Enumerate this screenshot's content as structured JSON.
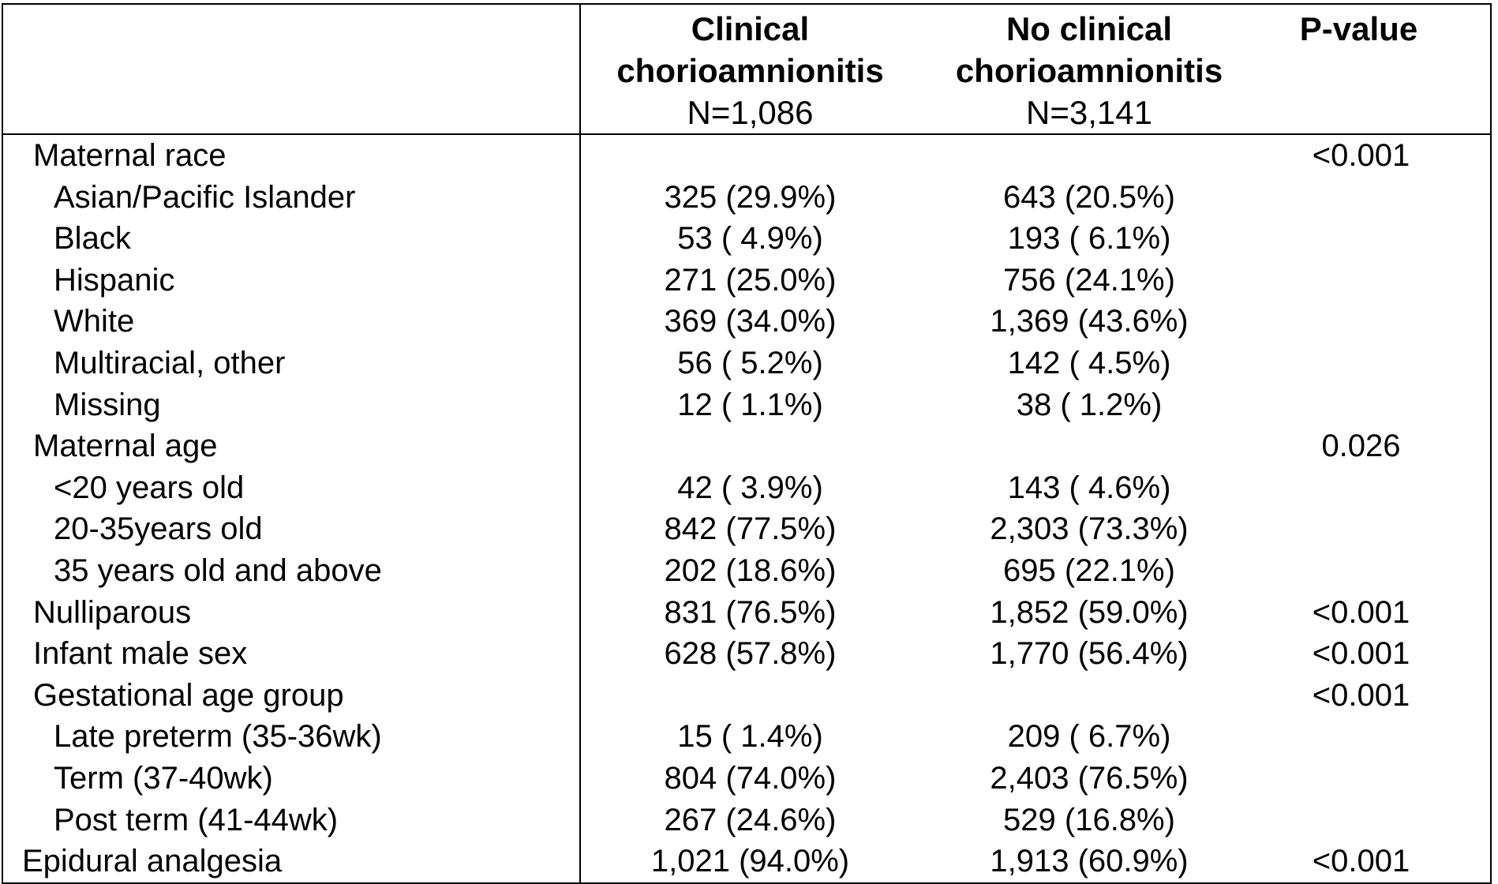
{
  "header": {
    "col1_title_line1": "Clinical",
    "col1_title_line2": "chorioamnionitis",
    "col1_n": "N=1,086",
    "col2_title_line1": "No clinical",
    "col2_title_line2": "chorioamnionitis",
    "col2_n": "N=3,141",
    "col3_title": "P-value"
  },
  "rows": [
    {
      "label": "Maternal race",
      "c1": "",
      "c2": "",
      "p": "<0.001",
      "indent": false
    },
    {
      "label": "Asian/Pacific Islander",
      "c1": "325 (29.9%)",
      "c2": "643 (20.5%)",
      "p": "",
      "indent": true
    },
    {
      "label": "Black",
      "c1": "53 ( 4.9%)",
      "c2": "193 ( 6.1%)",
      "p": "",
      "indent": true
    },
    {
      "label": "Hispanic",
      "c1": "271 (25.0%)",
      "c2": "756 (24.1%)",
      "p": "",
      "indent": true
    },
    {
      "label": "White",
      "c1": "369 (34.0%)",
      "c2": "1,369 (43.6%)",
      "p": "",
      "indent": true
    },
    {
      "label": "Multiracial, other",
      "c1": "56 ( 5.2%)",
      "c2": "142 ( 4.5%)",
      "p": "",
      "indent": true
    },
    {
      "label": "Missing",
      "c1": "12 ( 1.1%)",
      "c2": "38 ( 1.2%)",
      "p": "",
      "indent": true
    },
    {
      "label": "Maternal age",
      "c1": "",
      "c2": "",
      "p": "0.026",
      "indent": false
    },
    {
      "label": "<20 years old",
      "c1": "42 ( 3.9%)",
      "c2": "143 ( 4.6%)",
      "p": "",
      "indent": true
    },
    {
      "label": "20-35years old",
      "c1": "842 (77.5%)",
      "c2": "2,303 (73.3%)",
      "p": "",
      "indent": true
    },
    {
      "label": "35 years old and above",
      "c1": "202 (18.6%)",
      "c2": "695 (22.1%)",
      "p": "",
      "indent": true
    },
    {
      "label": "Nulliparous",
      "c1": "831 (76.5%)",
      "c2": "1,852 (59.0%)",
      "p": "<0.001",
      "indent": false
    },
    {
      "label": "Infant male sex",
      "c1": "628 (57.8%)",
      "c2": "1,770 (56.4%)",
      "p": "<0.001",
      "indent": false
    },
    {
      "label": "Gestational age group",
      "c1": "",
      "c2": "",
      "p": "<0.001",
      "indent": false
    },
    {
      "label": "Late preterm (35-36wk)",
      "c1": "15 ( 1.4%)",
      "c2": "209 ( 6.7%)",
      "p": "",
      "indent": true
    },
    {
      "label": "Term (37-40wk)",
      "c1": "804 (74.0%)",
      "c2": "2,403 (76.5%)",
      "p": "",
      "indent": true
    },
    {
      "label": "Post term (41-44wk)",
      "c1": "267 (24.6%)",
      "c2": "529 (16.8%)",
      "p": "",
      "indent": true
    },
    {
      "label": "Epidural analgesia",
      "c1": "1,021 (94.0%)",
      "c2": "1,913 (60.9%)",
      "p": "<0.001",
      "indent": false,
      "last": true
    }
  ]
}
